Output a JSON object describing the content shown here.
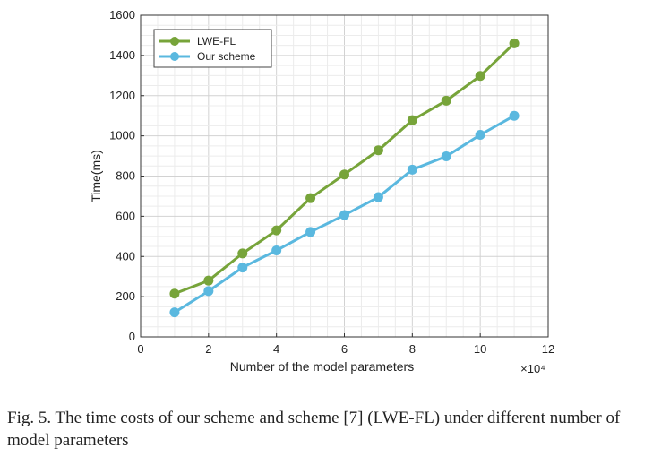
{
  "chart_data": {
    "type": "line",
    "x": [
      1,
      2,
      3,
      4,
      5,
      6,
      7,
      8,
      9,
      10,
      11
    ],
    "series": [
      {
        "name": "LWE-FL",
        "color": "#77a43a",
        "values": [
          215,
          280,
          415,
          530,
          690,
          808,
          928,
          1078,
          1175,
          1298,
          1460
        ]
      },
      {
        "name": "Our scheme",
        "color": "#5ab8df",
        "values": [
          122,
          228,
          345,
          430,
          522,
          606,
          695,
          832,
          898,
          1005,
          1100
        ]
      }
    ],
    "xlabel": "Number of the model parameters",
    "x_multiplier": "×10⁴",
    "ylabel": "Time(ms)",
    "xlim": [
      0,
      12
    ],
    "ylim": [
      0,
      1600
    ],
    "xticks": [
      0,
      2,
      4,
      6,
      8,
      10,
      12
    ],
    "yticks": [
      0,
      200,
      400,
      600,
      800,
      1000,
      1200,
      1400,
      1600
    ],
    "grid": true,
    "legend_position": "top-left"
  },
  "caption": "Fig. 5.  The time costs of our scheme and scheme [7] (LWE-FL) under different number of model parameters"
}
